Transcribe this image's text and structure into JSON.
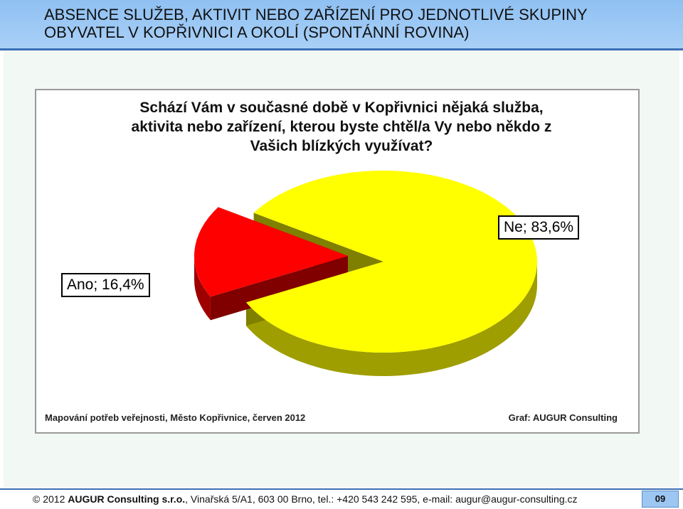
{
  "slide": {
    "title_line1": "ABSENCE SLUŽEB, AKTIVIT NEBO ZAŘÍZENÍ PRO JEDNOTLIVÉ SKUPINY",
    "title_line2": "OBYVATEL V KOPŘIVNICI A OKOLÍ (SPONTÁNNÍ ROVINA)"
  },
  "chart_data": {
    "type": "pie",
    "title_line1": "Schází Vám v současné době v Kopřivnici nějaká služba,",
    "title_line2": "aktivita nebo zařízení, kterou byste chtěl/a Vy nebo někdo z",
    "title_line3": "Vašich blízkých využívat?",
    "slices": [
      {
        "category": "Ne",
        "value": 83.6,
        "label": "Ne; 83,6%",
        "color": "#ffff00"
      },
      {
        "category": "Ano",
        "value": 16.4,
        "label": "Ano; 16,4%",
        "color": "#ff0000"
      }
    ],
    "source_note": "Mapování potřeb veřejnosti, Město Kopřivnice, červen 2012",
    "credit": "Graf: AUGUR Consulting"
  },
  "footer": {
    "copyright": "© 2012",
    "company": "AUGUR Consulting s.r.o.",
    "contact": ", Vinařská 5/A1, 603 00 Brno, tel.: +420 543 242 595, e-mail: augur@augur-consulting.cz",
    "page_number": "09"
  }
}
